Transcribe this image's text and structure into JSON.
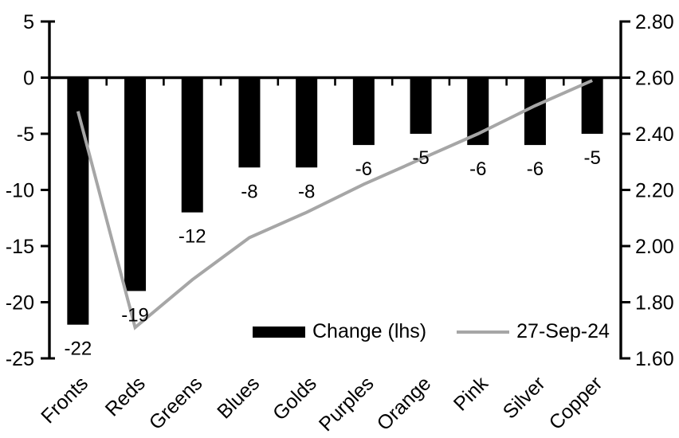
{
  "chart_data": {
    "type": "bar",
    "subtype": "bar+line combo, dual axis",
    "title": "",
    "categories": [
      "Fronts",
      "Reds",
      "Greens",
      "Blues",
      "Golds",
      "Purples",
      "Orange",
      "Pink",
      "Silver",
      "Copper"
    ],
    "series": [
      {
        "name": "Change (lhs)",
        "type": "bar",
        "axis": "left",
        "color": "#000000",
        "values": [
          -22,
          -19,
          -12,
          -8,
          -8,
          -6,
          -5,
          -6,
          -6,
          -5
        ]
      },
      {
        "name": "27-Sep-24",
        "type": "line",
        "axis": "right",
        "color": "#a6a6a6",
        "values": [
          2.48,
          1.71,
          1.88,
          2.03,
          2.12,
          2.22,
          2.31,
          2.4,
          2.5,
          2.59
        ]
      }
    ],
    "bar_data_labels": [
      "-22",
      "-19",
      "-12",
      "-8",
      "-8",
      "-6",
      "-5",
      "-6",
      "-6",
      "-5"
    ],
    "left_axis": {
      "min": -25,
      "max": 5,
      "ticks": [
        "5",
        "0",
        "-5",
        "-10",
        "-15",
        "-20",
        "-25"
      ]
    },
    "right_axis": {
      "min": 1.6,
      "max": 2.8,
      "ticks": [
        "2.80",
        "2.60",
        "2.40",
        "2.20",
        "2.00",
        "1.80",
        "1.60"
      ]
    },
    "legend": {
      "position": "inside-bottom",
      "items": [
        {
          "label": "Change (lhs)",
          "swatch": "bar"
        },
        {
          "label": "27-Sep-24",
          "swatch": "line"
        }
      ]
    },
    "grid": "off",
    "colors": {
      "bar": "#000000",
      "line": "#a6a6a6",
      "axis": "#000000",
      "text": "#000000",
      "background": "#ffffff"
    }
  }
}
